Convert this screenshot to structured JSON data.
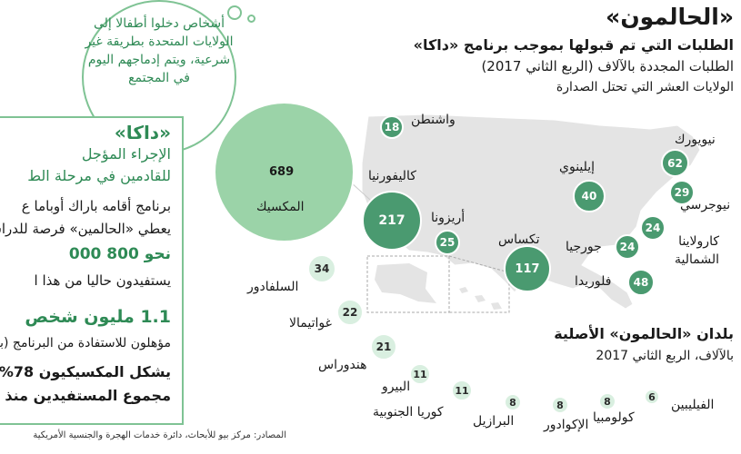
{
  "header": {
    "title": "«الحالمون»",
    "subtitle_1": "الطلبات التي تم قبولها بموجب برنامج «داكا»",
    "subtitle_2": "الطلبات المجددة بالآلاف (الربع الثاني 2017)",
    "subtitle_3": "الولايات العشر التي تحتل الصدارة"
  },
  "bubble": {
    "text": "أشخاص دخلوا أطفالا إلى الولايات المتحدة بطريقة غير شرعية، ويتم إدماجهم اليوم في المجتمع"
  },
  "daca_box": {
    "heading": "«داكا»",
    "line_1": "الإجراء المؤجل",
    "line_2": "للقادمين في مرحلة الط",
    "line_3": "برنامج أقامه باراك أوباما ع",
    "line_4": "يعطي «الحالمين» فرصة للدراس",
    "line_5": "نحو 800 000",
    "line_6": "يستفيدون حاليا من هذا ا",
    "line_7": "1.1 مليون شخص",
    "line_8": "مؤهلون للاستفادة من البرنامج (بيا",
    "line_9": "يشكل المكسيكيون 78%",
    "line_10": "مجموع المستفيدين منذ الع"
  },
  "states": [
    {
      "name": "واشنطن",
      "value": "18"
    },
    {
      "name": "كاليفورنيا",
      "value": "217"
    },
    {
      "name": "أريزونا",
      "value": "25"
    },
    {
      "name": "تكساس",
      "value": "117"
    },
    {
      "name": "إيلينوي",
      "value": "40"
    },
    {
      "name": "نيويورك",
      "value": "62"
    },
    {
      "name": "نيوجرسي",
      "value": "29"
    },
    {
      "name": "كارولاينا الشمالية",
      "value": "24"
    },
    {
      "name": "جورجيا",
      "value": "24"
    },
    {
      "name": "فلوريدا",
      "value": "48"
    }
  ],
  "origins_header": {
    "title": "بلدان «الحالمون» الأصلية",
    "subtitle": "بالآلاف، الربع الثاني 2017"
  },
  "countries": [
    {
      "name": "المكسيك",
      "value": "689"
    },
    {
      "name": "السلفادور",
      "value": "34"
    },
    {
      "name": "غواتيمالا",
      "value": "22"
    },
    {
      "name": "هندوراس",
      "value": "21"
    },
    {
      "name": "البيرو",
      "value": "11"
    },
    {
      "name": "كوريا الجنوبية",
      "value": "11"
    },
    {
      "name": "البرازيل",
      "value": "8"
    },
    {
      "name": "الإكوادور",
      "value": "8"
    },
    {
      "name": "كولومبيا",
      "value": "8"
    },
    {
      "name": "الفيليبين",
      "value": "6"
    }
  ],
  "source": "المصادر: مركز بيو للأبحاث، دائرة خدمات الهجرة والجنسية الأمريكية",
  "colors": {
    "accent_green": "#2e8a55",
    "circle_dark": "#4a9a70",
    "circle_big": "#9bd3a8",
    "circle_light": "#d9efe0",
    "map_fill": "#e4e4e4"
  }
}
